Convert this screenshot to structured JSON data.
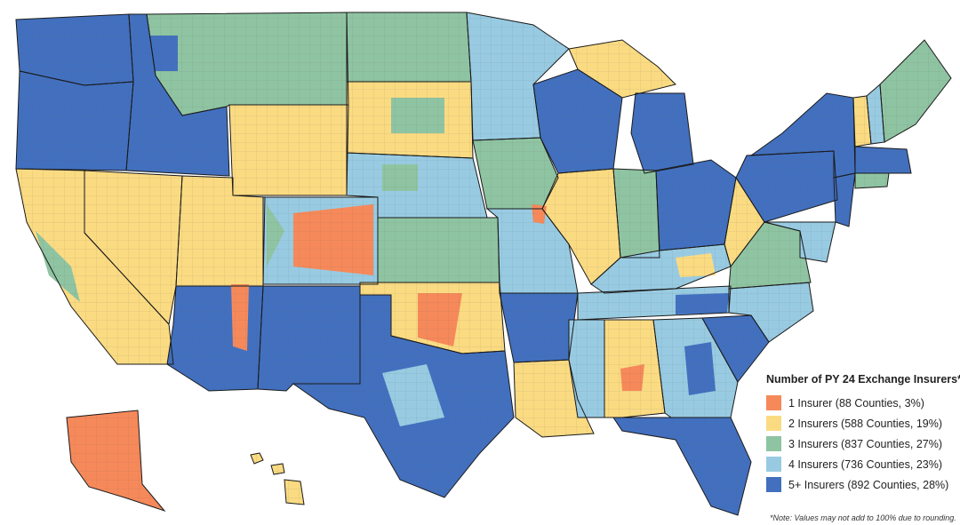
{
  "map": {
    "title": "Number of PY 24 Exchange Insurers*",
    "note": "*Note: Values may not add to 100% due to rounding.",
    "colors": {
      "1": "#f6895a",
      "2": "#fbdb82",
      "3": "#8fc4a2",
      "4": "#98cbe2",
      "5": "#4270bf",
      "border": "#1a1a1a"
    },
    "legend": [
      {
        "key": "1",
        "label": "1 Insurer (88 Counties, 3%)",
        "color": "#f6895a"
      },
      {
        "key": "2",
        "label": "2 Insurers (588 Counties, 19%)",
        "color": "#fbdb82"
      },
      {
        "key": "3",
        "label": "3 Insurers (837 Counties, 27%)",
        "color": "#8fc4a2"
      },
      {
        "key": "4",
        "label": "4 Insurers (736 Counties, 23%)",
        "color": "#98cbe2"
      },
      {
        "key": "5",
        "label": "5+ Insurers (892 Counties, 28%)",
        "color": "#4270bf"
      }
    ]
  }
}
